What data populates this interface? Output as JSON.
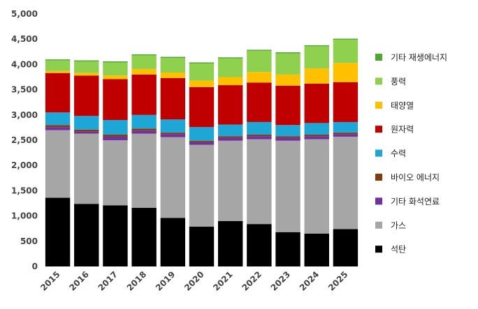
{
  "chart_data": {
    "type": "bar",
    "stacked": true,
    "title": "",
    "xlabel": "",
    "ylabel": "",
    "ylim": [
      0,
      5000
    ],
    "yticks": [
      0,
      500,
      1000,
      1500,
      2000,
      2500,
      3000,
      3500,
      4000,
      4500,
      5000
    ],
    "ytick_labels": [
      "0",
      "500",
      "1,000",
      "1,500",
      "2,000",
      "2,500",
      "3,000",
      "3,500",
      "4,000",
      "4,500",
      "5,000"
    ],
    "categories": [
      "2015",
      "2016",
      "2017",
      "2018",
      "2019",
      "2020",
      "2021",
      "2022",
      "2023",
      "2024",
      "2025"
    ],
    "grid": false,
    "legend_position": "right",
    "series": [
      {
        "name": "석탄",
        "color": "#000000",
        "values": [
          1360,
          1240,
          1210,
          1160,
          960,
          790,
          900,
          840,
          680,
          650,
          740
        ]
      },
      {
        "name": "가스",
        "color": "#a6a6a6",
        "values": [
          1340,
          1390,
          1290,
          1470,
          1600,
          1620,
          1590,
          1680,
          1810,
          1870,
          1830
        ]
      },
      {
        "name": "기타 화석연료",
        "color": "#7030a0",
        "values": [
          60,
          40,
          70,
          60,
          60,
          50,
          60,
          60,
          60,
          60,
          50
        ]
      },
      {
        "name": "바이오 에너지",
        "color": "#843c0c",
        "values": [
          40,
          40,
          40,
          40,
          30,
          30,
          30,
          30,
          30,
          30,
          30
        ]
      },
      {
        "name": "수력",
        "color": "#1ea7d6",
        "values": [
          250,
          270,
          290,
          270,
          260,
          270,
          230,
          250,
          220,
          230,
          210
        ]
      },
      {
        "name": "원자력",
        "color": "#c00000",
        "values": [
          780,
          800,
          810,
          800,
          820,
          790,
          780,
          780,
          780,
          780,
          790
        ]
      },
      {
        "name": "태양열",
        "color": "#ffc000",
        "values": [
          40,
          50,
          70,
          110,
          110,
          130,
          160,
          210,
          220,
          300,
          380
        ]
      },
      {
        "name": "풍력",
        "color": "#8fd14f",
        "values": [
          210,
          230,
          260,
          270,
          290,
          340,
          370,
          420,
          420,
          440,
          460
        ]
      },
      {
        "name": "기타 재생에너지",
        "color": "#4ea72e",
        "values": [
          20,
          20,
          20,
          20,
          20,
          20,
          20,
          20,
          20,
          20,
          20
        ]
      }
    ]
  }
}
